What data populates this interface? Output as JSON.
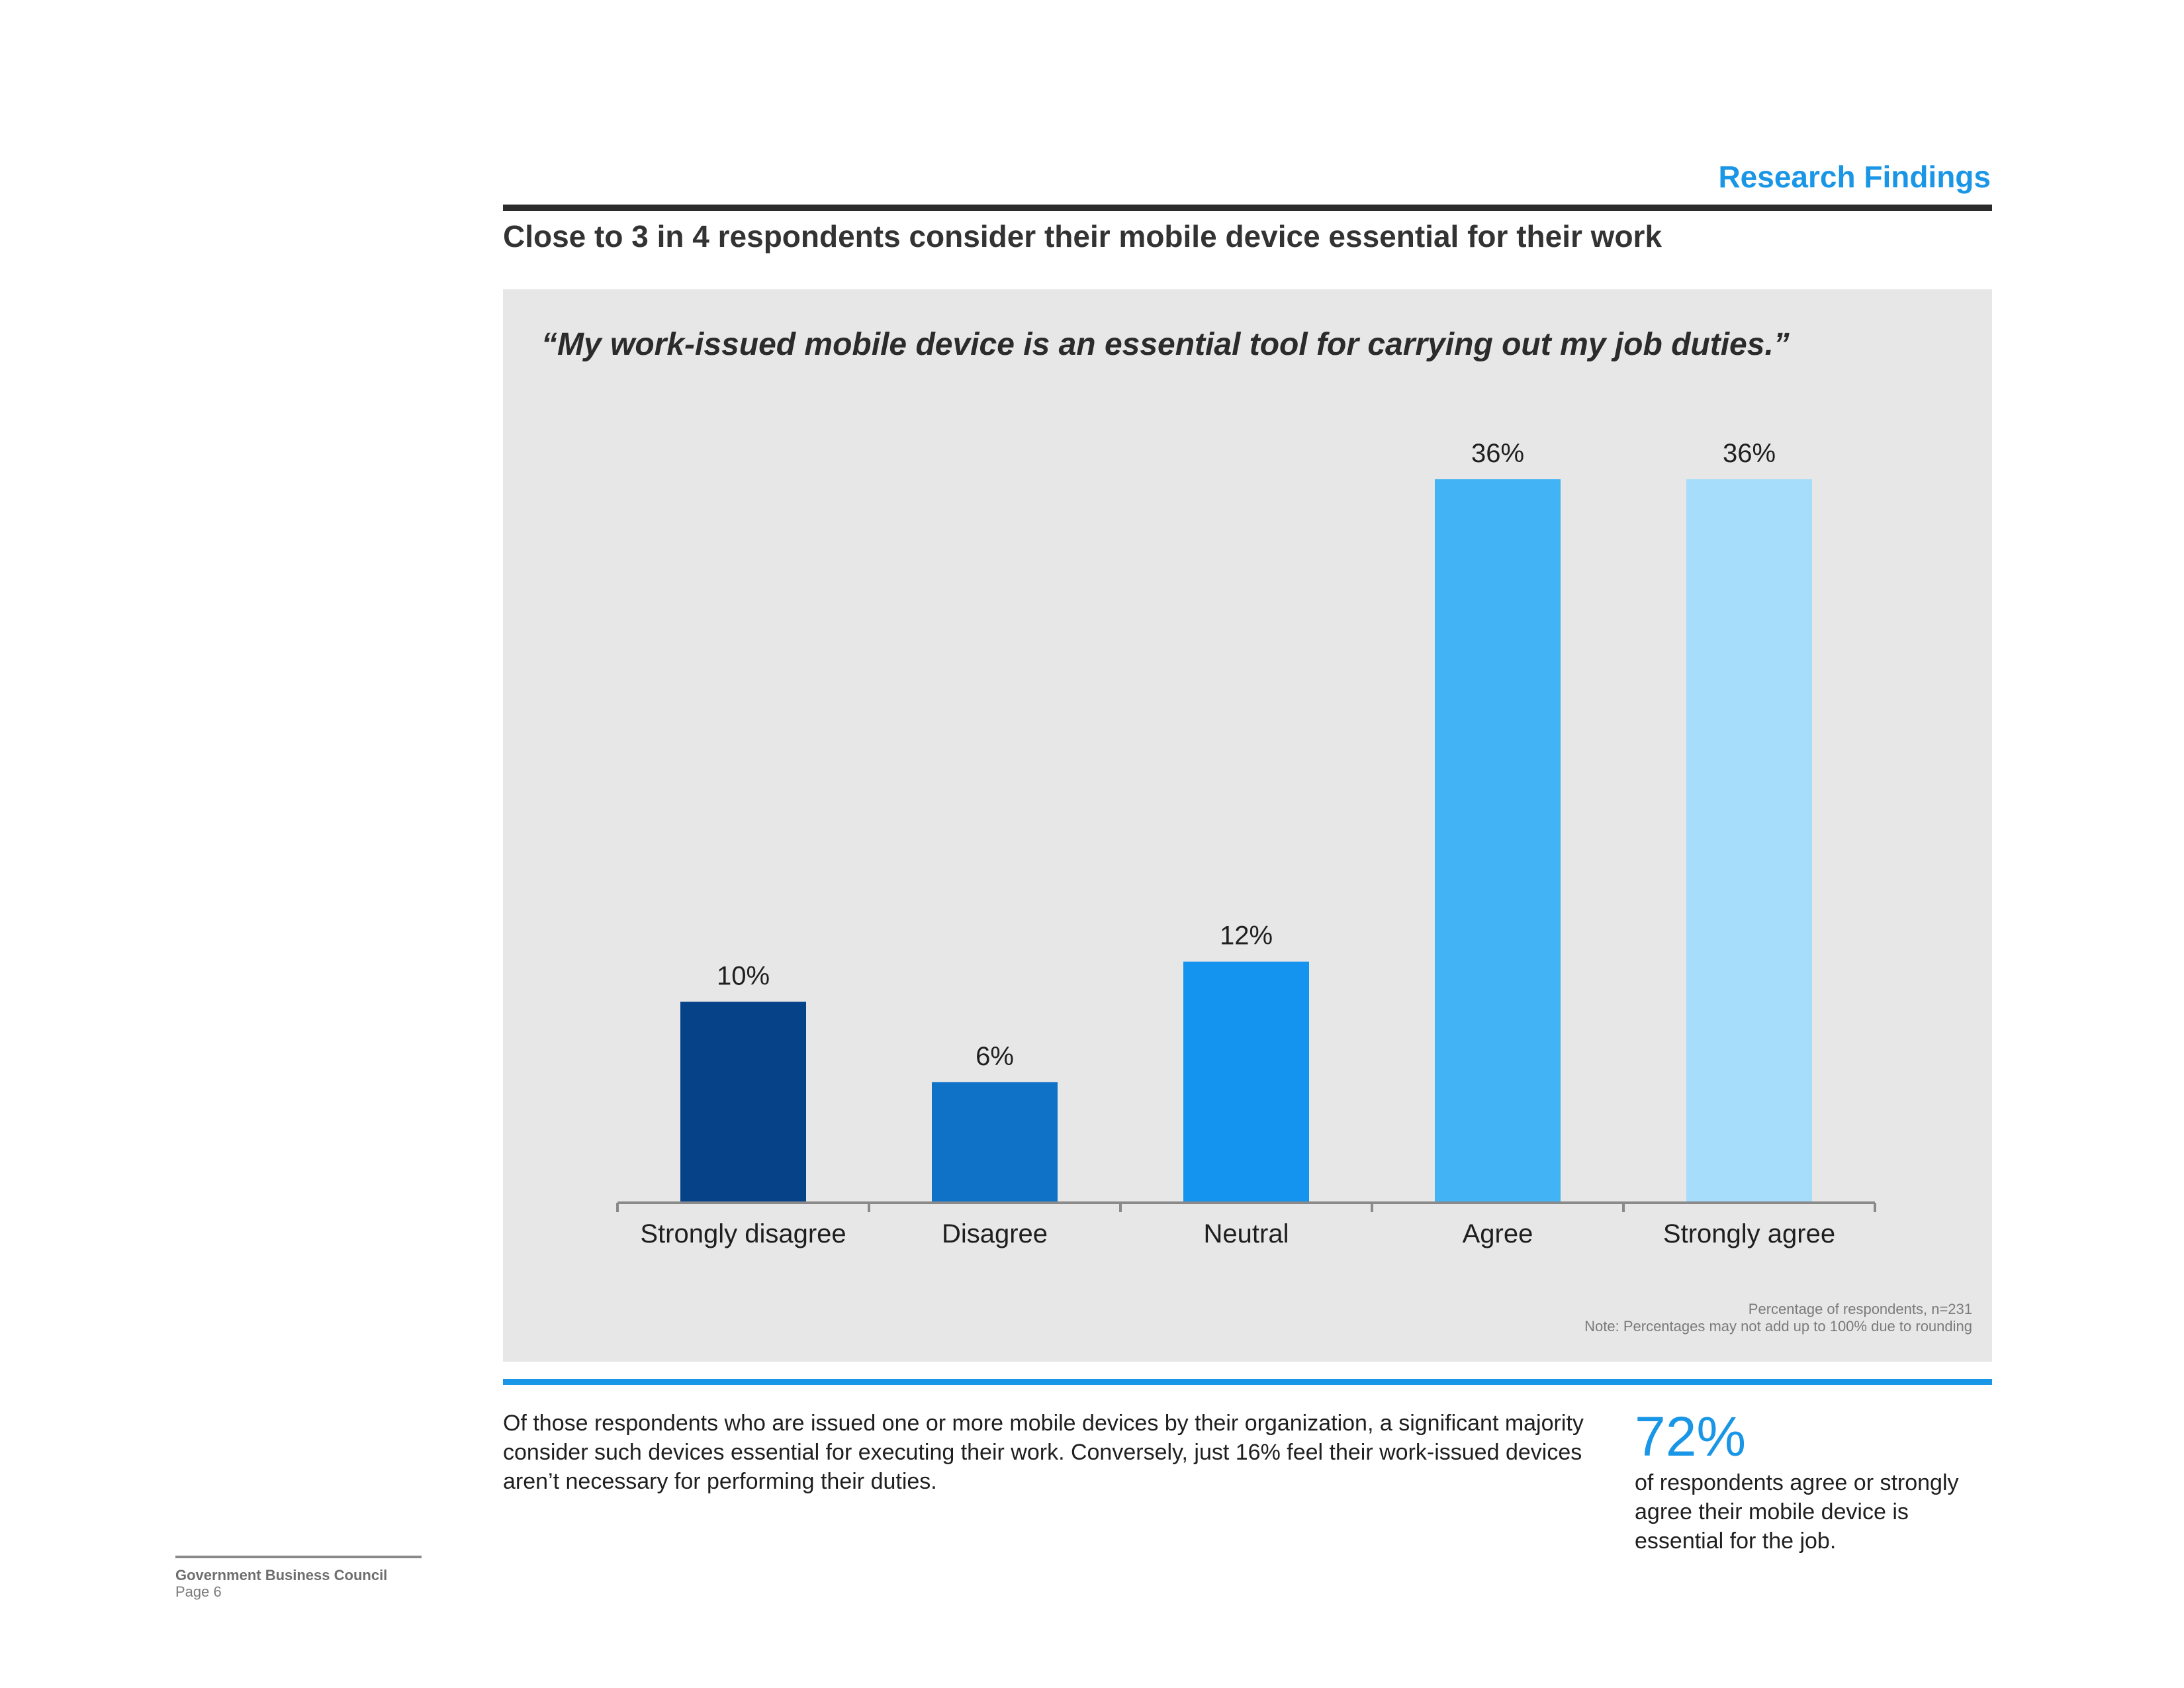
{
  "header": {
    "section_label": "Research Findings",
    "headline": "Close to 3 in 4 respondents consider their mobile device essential for their work"
  },
  "chart_data": {
    "type": "bar",
    "title": "“My work-issued mobile device is an essential tool for carrying out my job duties.”",
    "categories": [
      "Strongly disagree",
      "Disagree",
      "Neutral",
      "Agree",
      "Strongly agree"
    ],
    "values": [
      10,
      6,
      12,
      36,
      36
    ],
    "value_labels": [
      "10%",
      "6%",
      "12%",
      "36%",
      "36%"
    ],
    "colors": [
      "#064288",
      "#0f72c6",
      "#1494ef",
      "#42b4f5",
      "#a6ddfa"
    ],
    "xlabel": "",
    "ylabel": "",
    "ylim": [
      0,
      36
    ],
    "grid": false,
    "legend": "none",
    "notes": [
      "Percentage of respondents, n=231",
      "Note: Percentages may not add up to 100% due to rounding"
    ]
  },
  "body": {
    "text": "Of those respondents who are issued one or more mobile devices by their organization, a significant majority consider such devices essential for executing their work. Conversely, just 16% feel their work-issued devices aren’t necessary for performing their duties.",
    "stat_value": "72%",
    "stat_caption": "of respondents agree or strongly agree their mobile device is essential for the job."
  },
  "footer": {
    "org": "Government Business Council",
    "page": "Page 6"
  }
}
